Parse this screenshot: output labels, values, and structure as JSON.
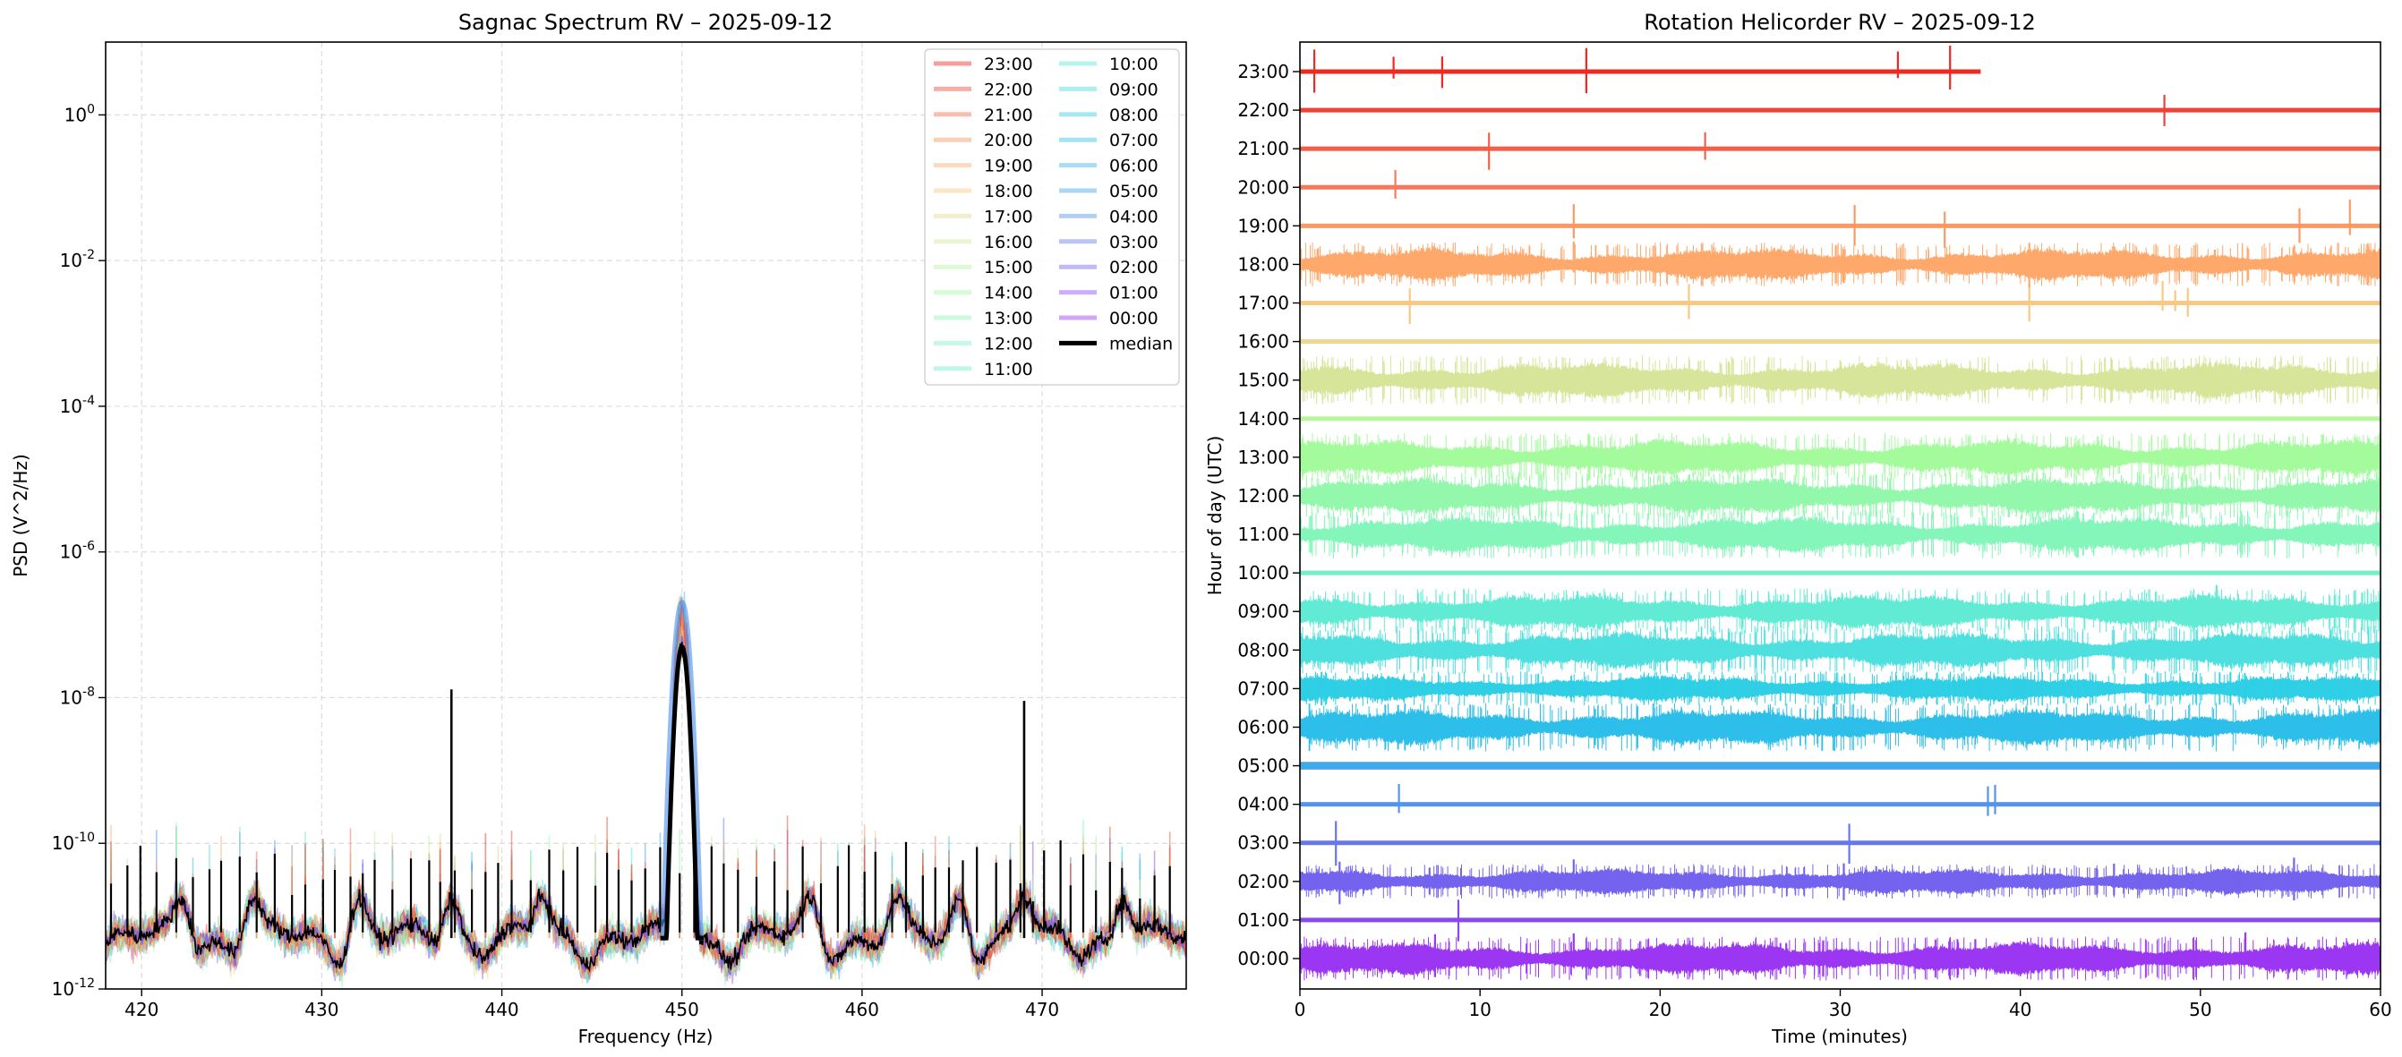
{
  "chart_data": [
    {
      "type": "line",
      "title": "Sagnac Spectrum RV – 2025-09-12",
      "xlabel": "Frequency (Hz)",
      "ylabel": "PSD (V^2/Hz)",
      "xlim": [
        418,
        478
      ],
      "ylim": [
        1e-12,
        10
      ],
      "yscale": "log",
      "grid": true,
      "legend_position": "top-right",
      "x_ticks": [
        420,
        430,
        440,
        450,
        460,
        470
      ],
      "y_ticks": [
        {
          "exp": "-12",
          "value": 1e-12
        },
        {
          "exp": "-10",
          "value": 1e-10
        },
        {
          "exp": "-8",
          "value": 1e-08
        },
        {
          "exp": "-6",
          "value": 1e-06
        },
        {
          "exp": "-4",
          "value": 0.0001
        },
        {
          "exp": "-2",
          "value": 0.01
        },
        {
          "exp": "0",
          "value": 1
        }
      ],
      "y_tick_base": "10",
      "series_hours": [
        "00:00",
        "01:00",
        "02:00",
        "03:00",
        "04:00",
        "05:00",
        "06:00",
        "07:00",
        "08:00",
        "09:00",
        "10:00",
        "11:00",
        "12:00",
        "13:00",
        "14:00",
        "15:00",
        "16:00",
        "17:00",
        "18:00",
        "19:00",
        "20:00",
        "21:00",
        "22:00",
        "23:00"
      ],
      "median_name": "median",
      "noise_floor_median": 5e-12,
      "main_peak": {
        "freq": 450,
        "median_psd": 5e-08,
        "max_psd": 2e-07
      },
      "notable_spikes": [
        {
          "freq": 437.2,
          "psd": 1.3e-08
        },
        {
          "freq": 469.0,
          "psd": 9e-09
        }
      ]
    },
    {
      "type": "line",
      "title": "Rotation Helicorder RV – 2025-09-12",
      "xlabel": "Time (minutes)",
      "ylabel": "Hour of day (UTC)",
      "xlim": [
        0,
        60
      ],
      "x_ticks": [
        0,
        10,
        20,
        30,
        40,
        50,
        60
      ],
      "y_tick_labels": [
        "00:00",
        "01:00",
        "02:00",
        "03:00",
        "04:00",
        "05:00",
        "06:00",
        "07:00",
        "08:00",
        "09:00",
        "10:00",
        "11:00",
        "12:00",
        "13:00",
        "14:00",
        "15:00",
        "16:00",
        "17:00",
        "18:00",
        "19:00",
        "20:00",
        "21:00",
        "22:00",
        "23:00"
      ],
      "traces": [
        {
          "hour": "00:00",
          "amplitude": 0.38,
          "color": "#9b36f3",
          "spikes": [
            7.5,
            15.2,
            27,
            37.5,
            52.5
          ]
        },
        {
          "hour": "01:00",
          "amplitude": 0.03,
          "color": "#8a48ef",
          "spikes": [
            8.8
          ]
        },
        {
          "hour": "02:00",
          "amplitude": 0.3,
          "color": "#7463ee",
          "spikes": [
            2.2,
            7.2,
            15.2,
            30.2,
            45.2,
            55.2
          ]
        },
        {
          "hour": "03:00",
          "amplitude": 0.03,
          "color": "#6677ee",
          "spikes": [
            2.0,
            30.5
          ]
        },
        {
          "hour": "04:00",
          "amplitude": 0.03,
          "color": "#5594ec",
          "spikes": [
            5.5,
            38.2,
            38.6
          ]
        },
        {
          "hour": "05:00",
          "amplitude": 0.1,
          "color": "#43a8e9",
          "spikes": []
        },
        {
          "hour": "06:00",
          "amplitude": 0.42,
          "color": "#2dbfea",
          "spikes": []
        },
        {
          "hour": "07:00",
          "amplitude": 0.3,
          "color": "#2fcfe6",
          "spikes": []
        },
        {
          "hour": "08:00",
          "amplitude": 0.42,
          "color": "#4ee0df",
          "spikes": []
        },
        {
          "hour": "09:00",
          "amplitude": 0.4,
          "color": "#61ebd5",
          "spikes": [
            50.5,
            50.9
          ]
        },
        {
          "hour": "10:00",
          "amplitude": 0.03,
          "color": "#72f0c8",
          "spikes": []
        },
        {
          "hour": "11:00",
          "amplitude": 0.42,
          "color": "#84f6ba",
          "spikes": []
        },
        {
          "hour": "12:00",
          "amplitude": 0.42,
          "color": "#93f8ac",
          "spikes": []
        },
        {
          "hour": "13:00",
          "amplitude": 0.42,
          "color": "#a4fb9c",
          "spikes": []
        },
        {
          "hour": "14:00",
          "amplitude": 0.03,
          "color": "#b8f69a",
          "spikes": []
        },
        {
          "hour": "15:00",
          "amplitude": 0.42,
          "color": "#d6e599",
          "spikes": [
            23.8
          ]
        },
        {
          "hour": "16:00",
          "amplitude": 0.03,
          "color": "#ecd793",
          "spikes": []
        },
        {
          "hour": "17:00",
          "amplitude": 0.04,
          "color": "#f9c882",
          "spikes": [
            6.1,
            21.6,
            40.5,
            47.9,
            48.6,
            49.3
          ]
        },
        {
          "hour": "18:00",
          "amplitude": 0.38,
          "color": "#fea86b",
          "spikes": [
            15.2,
            30.2,
            40.5,
            45.2,
            50.8,
            55.2
          ]
        },
        {
          "hour": "19:00",
          "amplitude": 0.03,
          "color": "#fb9a63",
          "spikes": [
            15.2,
            30.8,
            35.8,
            55.5,
            58.3
          ]
        },
        {
          "hour": "20:00",
          "amplitude": 0.03,
          "color": "#f6795c",
          "spikes": [
            5.3
          ]
        },
        {
          "hour": "21:00",
          "amplitude": 0.03,
          "color": "#f26049",
          "spikes": [
            10.5,
            22.5
          ]
        },
        {
          "hour": "22:00",
          "amplitude": 0.04,
          "color": "#ef4136",
          "spikes": [
            48.0
          ]
        },
        {
          "hour": "23:00",
          "amplitude": 0.04,
          "color": "#ee2a22",
          "end_minute": 37.8,
          "spikes": [
            0.8,
            5.2,
            7.9,
            15.9,
            33.2,
            36.1
          ]
        }
      ]
    }
  ],
  "legend": {
    "col1": [
      "23:00",
      "22:00",
      "21:00",
      "20:00",
      "19:00",
      "18:00",
      "17:00",
      "16:00",
      "15:00",
      "14:00",
      "13:00",
      "12:00",
      "11:00"
    ],
    "col2": [
      "10:00",
      "09:00",
      "08:00",
      "07:00",
      "06:00",
      "05:00",
      "04:00",
      "03:00",
      "02:00",
      "01:00",
      "00:00",
      "median"
    ]
  },
  "colors": {
    "median": "#000000",
    "grid": "#dddddd",
    "hour_palette_low": "#9b36f3",
    "hour_palette_high": "#ee2a22"
  }
}
